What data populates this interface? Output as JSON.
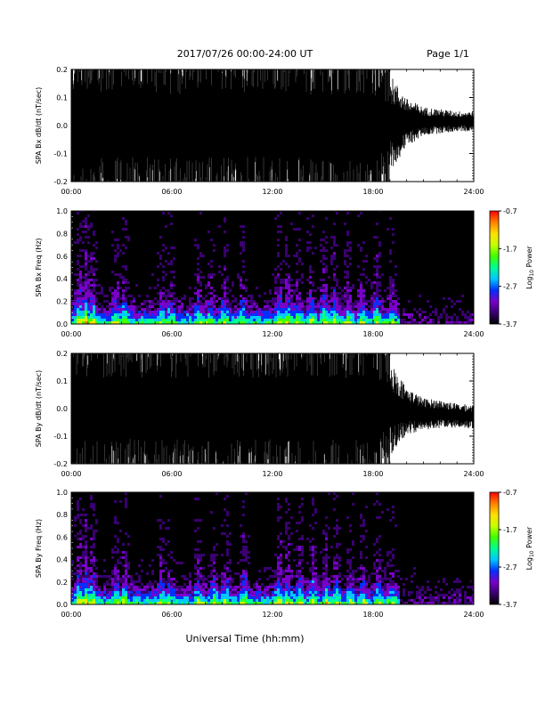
{
  "header": {
    "title": "2017/07/26  00:00-24:00 UT",
    "page": "Page 1/1"
  },
  "footer": {
    "xlabel": "Universal Time (hh:mm)"
  },
  "colors": {
    "trace": "#000000",
    "spectrogram_background": "#000000",
    "colormap": [
      "#000000",
      "#3a0070",
      "#7a00c8",
      "#0030ff",
      "#00c8ff",
      "#00ff90",
      "#40ff00",
      "#c8ff00",
      "#ffe000",
      "#ff8000",
      "#ff0000"
    ]
  },
  "chart_data": [
    {
      "type": "line",
      "ylabel": "SPA Bx dB/dt (nT/sec)",
      "ylim": [
        -0.2,
        0.2
      ],
      "yticks": [
        "-0.2",
        "-0.1",
        "0.0",
        "0.1",
        "0.2"
      ],
      "ytick_values": [
        -0.2,
        -0.1,
        0.0,
        0.1,
        0.2
      ],
      "xlim": [
        "00:00",
        "24:00"
      ],
      "xticks": [
        "00:00",
        "06:00",
        "12:00",
        "18:00",
        "24:00"
      ],
      "envelope_hours": [
        0,
        1,
        2,
        3,
        4,
        5,
        6,
        7,
        8,
        9,
        10,
        11,
        12,
        13,
        14,
        15,
        16,
        17,
        18,
        19,
        20,
        21,
        22,
        23,
        24
      ],
      "envelope_amplitude": [
        0.2,
        0.2,
        0.2,
        0.2,
        0.2,
        0.2,
        0.2,
        0.2,
        0.2,
        0.2,
        0.2,
        0.2,
        0.2,
        0.2,
        0.2,
        0.2,
        0.2,
        0.2,
        0.2,
        0.12,
        0.06,
        0.035,
        0.03,
        0.025,
        0.025
      ],
      "envelope_offset": [
        0,
        0,
        0,
        0,
        0,
        0,
        0,
        0,
        0,
        0,
        0,
        0,
        0,
        0,
        0,
        0,
        0,
        0,
        0,
        0.01,
        0.01,
        0.015,
        0.015,
        0.015,
        0.015
      ]
    },
    {
      "type": "heatmap",
      "ylabel": "SPA Bx Freq (Hz)",
      "ylim": [
        0.0,
        1.0
      ],
      "yticks": [
        "0.0",
        "0.2",
        "0.4",
        "0.6",
        "0.8",
        "1.0"
      ],
      "ytick_values": [
        0.0,
        0.2,
        0.4,
        0.6,
        0.8,
        1.0
      ],
      "xlim": [
        "00:00",
        "24:00"
      ],
      "xticks": [
        "00:00",
        "06:00",
        "12:00",
        "18:00",
        "24:00"
      ],
      "colorbar": {
        "label": "Log",
        "label_subscript": "10",
        "label_suffix": " Power",
        "range": [
          -3.7,
          -0.7
        ],
        "ticks": [
          "-0.7",
          "-1.7",
          "-2.7",
          "-3.7"
        ],
        "tick_values": [
          -0.7,
          -1.7,
          -2.7,
          -3.7
        ]
      },
      "activity_bands_hours": [
        0.4,
        0.8,
        1.2,
        2.6,
        3.1,
        5.3,
        5.8,
        7.5,
        8.2,
        9.0,
        10.1,
        12.3,
        12.8,
        13.4,
        14.2,
        15.0,
        15.6,
        16.4,
        17.2,
        18.1,
        19.0
      ],
      "activity_band_strength": [
        0.9,
        1.0,
        0.8,
        0.6,
        0.7,
        0.5,
        0.5,
        0.6,
        0.5,
        0.6,
        0.6,
        0.9,
        0.8,
        0.7,
        0.7,
        0.8,
        0.7,
        0.6,
        0.6,
        0.7,
        0.5
      ]
    },
    {
      "type": "line",
      "ylabel": "SPA By dB/dt (nT/sec)",
      "ylim": [
        -0.2,
        0.2
      ],
      "yticks": [
        "-0.2",
        "-0.1",
        "0.0",
        "0.1",
        "0.2"
      ],
      "ytick_values": [
        -0.2,
        -0.1,
        0.0,
        0.1,
        0.2
      ],
      "xlim": [
        "00:00",
        "24:00"
      ],
      "xticks": [
        "00:00",
        "06:00",
        "12:00",
        "18:00",
        "24:00"
      ],
      "envelope_hours": [
        0,
        1,
        2,
        3,
        4,
        5,
        6,
        7,
        8,
        9,
        10,
        11,
        12,
        13,
        14,
        15,
        16,
        17,
        18,
        19,
        20,
        21,
        22,
        23,
        24
      ],
      "envelope_amplitude": [
        0.2,
        0.2,
        0.2,
        0.2,
        0.2,
        0.2,
        0.2,
        0.2,
        0.2,
        0.2,
        0.2,
        0.2,
        0.2,
        0.2,
        0.2,
        0.2,
        0.2,
        0.2,
        0.2,
        0.12,
        0.06,
        0.04,
        0.035,
        0.03,
        0.03
      ],
      "envelope_offset": [
        0,
        0,
        0,
        0,
        0,
        0,
        0,
        0,
        0,
        0,
        0,
        0,
        0,
        0,
        0,
        0,
        0,
        0,
        0,
        0,
        -0.01,
        -0.02,
        -0.02,
        -0.025,
        -0.03
      ]
    },
    {
      "type": "heatmap",
      "ylabel": "SPA By Freq (Hz)",
      "ylim": [
        0.0,
        1.0
      ],
      "yticks": [
        "0.0",
        "0.2",
        "0.4",
        "0.6",
        "0.8",
        "1.0"
      ],
      "ytick_values": [
        0.0,
        0.2,
        0.4,
        0.6,
        0.8,
        1.0
      ],
      "xlim": [
        "00:00",
        "24:00"
      ],
      "xticks": [
        "00:00",
        "06:00",
        "12:00",
        "18:00",
        "24:00"
      ],
      "colorbar": {
        "label": "Log",
        "label_subscript": "10",
        "label_suffix": " Power",
        "range": [
          -3.7,
          -0.7
        ],
        "ticks": [
          "-0.7",
          "-1.7",
          "-2.7",
          "-3.7"
        ],
        "tick_values": [
          -0.7,
          -1.7,
          -2.7,
          -3.7
        ]
      },
      "activity_bands_hours": [
        0.4,
        0.8,
        1.2,
        2.6,
        3.1,
        5.3,
        5.8,
        7.5,
        8.4,
        9.1,
        10.2,
        12.3,
        12.8,
        13.5,
        14.3,
        15.1,
        15.7,
        16.5,
        17.3,
        18.2,
        19.0
      ],
      "activity_band_strength": [
        0.9,
        1.0,
        0.8,
        0.6,
        0.7,
        0.6,
        0.5,
        0.7,
        0.6,
        0.7,
        0.8,
        0.9,
        0.8,
        0.7,
        0.8,
        0.8,
        0.7,
        0.6,
        0.6,
        0.7,
        0.5
      ]
    }
  ]
}
